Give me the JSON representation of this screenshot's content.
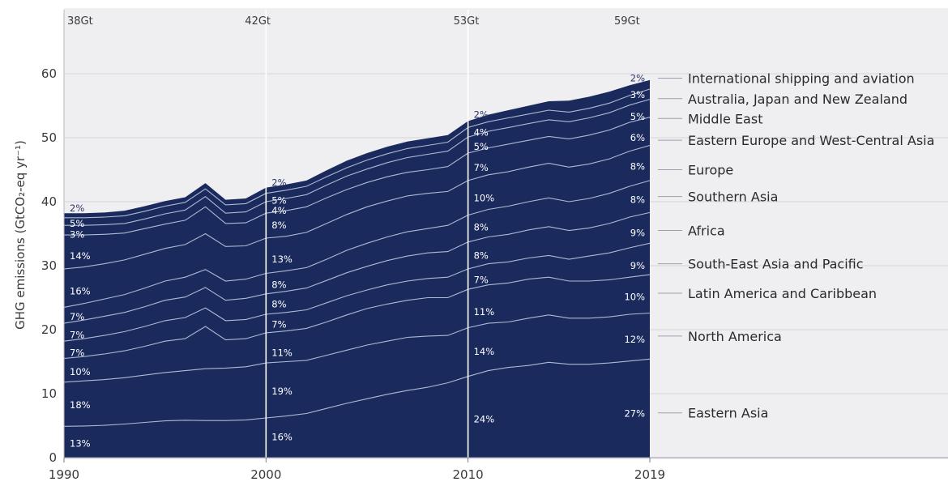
{
  "chart_data": {
    "type": "area",
    "ylabel": "GHG emissions (GtCO₂-eq yr⁻¹)",
    "ylim": [
      0,
      62
    ],
    "yticks": [
      0,
      10,
      20,
      30,
      40,
      50,
      60
    ],
    "xlim": [
      1990,
      2019
    ],
    "xticks": [
      "1990",
      "2000",
      "2010",
      "2019"
    ],
    "grid": "horizontal",
    "area_color": "#1b2a5c",
    "line_color": "#c8d2e8",
    "totals": [
      {
        "year": 1990,
        "label": "38Gt"
      },
      {
        "year": 2000,
        "label": "42Gt"
      },
      {
        "year": 2010,
        "label": "53Gt"
      },
      {
        "year": 2019,
        "label": "59Gt"
      }
    ],
    "years": [
      1990,
      1991,
      1992,
      1993,
      1994,
      1995,
      1996,
      1997,
      1998,
      1999,
      2000,
      2001,
      2002,
      2003,
      2004,
      2005,
      2006,
      2007,
      2008,
      2009,
      2010,
      2011,
      2012,
      2013,
      2014,
      2015,
      2016,
      2017,
      2018,
      2019
    ],
    "series": [
      {
        "name": "Eastern Asia",
        "values": [
          4.9,
          4.95,
          5.05,
          5.25,
          5.5,
          5.75,
          5.85,
          5.8,
          5.8,
          5.9,
          6.2,
          6.5,
          6.9,
          7.7,
          8.5,
          9.2,
          9.9,
          10.5,
          11.0,
          11.7,
          12.7,
          13.6,
          14.1,
          14.4,
          14.9,
          14.6,
          14.6,
          14.8,
          15.1,
          15.4
        ]
      },
      {
        "name": "North America",
        "values": [
          11.8,
          12.0,
          12.2,
          12.5,
          12.9,
          13.3,
          13.6,
          13.9,
          14.0,
          14.2,
          14.8,
          15.0,
          15.2,
          16.0,
          16.8,
          17.6,
          18.2,
          18.8,
          19.0,
          19.1,
          20.3,
          21.0,
          21.2,
          21.8,
          22.3,
          21.8,
          21.8,
          22.0,
          22.4,
          22.6
        ]
      },
      {
        "name": "Latin America and Caribbean",
        "values": [
          15.5,
          15.8,
          16.2,
          16.7,
          17.4,
          18.2,
          18.6,
          20.5,
          18.4,
          18.6,
          19.5,
          19.8,
          20.2,
          21.2,
          22.3,
          23.3,
          24.0,
          24.6,
          25.0,
          25.0,
          26.3,
          27.0,
          27.3,
          27.9,
          28.2,
          27.6,
          27.6,
          27.8,
          28.2,
          28.6
        ]
      },
      {
        "name": "South-East Asia and Pacific",
        "values": [
          18.2,
          18.6,
          19.1,
          19.7,
          20.5,
          21.4,
          21.9,
          23.4,
          21.4,
          21.6,
          22.4,
          22.7,
          23.1,
          24.2,
          25.3,
          26.2,
          27.0,
          27.6,
          28.0,
          28.2,
          29.5,
          30.3,
          30.6,
          31.2,
          31.6,
          31.0,
          31.5,
          32.0,
          32.8,
          33.5
        ]
      },
      {
        "name": "Africa",
        "values": [
          21.0,
          21.5,
          22.1,
          22.7,
          23.6,
          24.6,
          25.1,
          26.6,
          24.6,
          24.9,
          25.6,
          26.0,
          26.5,
          27.7,
          28.9,
          29.9,
          30.8,
          31.5,
          32.0,
          32.2,
          33.7,
          34.5,
          34.9,
          35.6,
          36.1,
          35.5,
          35.9,
          36.6,
          37.6,
          38.3
        ]
      },
      {
        "name": "Southern Asia",
        "values": [
          23.5,
          24.1,
          24.8,
          25.5,
          26.5,
          27.6,
          28.2,
          29.4,
          27.6,
          27.9,
          28.8,
          29.2,
          29.7,
          31.0,
          32.4,
          33.5,
          34.5,
          35.3,
          35.8,
          36.3,
          37.9,
          38.8,
          39.3,
          40.0,
          40.6,
          40.0,
          40.5,
          41.3,
          42.4,
          43.3
        ]
      },
      {
        "name": "Europe",
        "values": [
          29.5,
          29.8,
          30.3,
          30.9,
          31.8,
          32.7,
          33.3,
          35.0,
          33.0,
          33.1,
          34.3,
          34.6,
          35.2,
          36.6,
          38.0,
          39.2,
          40.1,
          40.9,
          41.3,
          41.6,
          43.3,
          44.2,
          44.7,
          45.4,
          46.0,
          45.4,
          45.9,
          46.7,
          47.9,
          48.8
        ]
      },
      {
        "name": "Eastern Europe and West-Central Asia",
        "values": [
          34.8,
          34.8,
          34.9,
          35.1,
          35.8,
          36.5,
          37.1,
          39.2,
          36.6,
          36.7,
          38.2,
          38.6,
          39.2,
          40.6,
          41.9,
          43.0,
          43.9,
          44.6,
          45.0,
          45.5,
          47.6,
          48.4,
          49.0,
          49.6,
          50.2,
          49.8,
          50.4,
          51.2,
          52.4,
          53.2
        ]
      },
      {
        "name": "Middle East",
        "values": [
          36.3,
          36.3,
          36.4,
          36.6,
          37.3,
          38.1,
          38.7,
          40.8,
          38.2,
          38.4,
          40.0,
          40.5,
          41.1,
          42.6,
          44.0,
          45.1,
          46.1,
          46.9,
          47.4,
          47.9,
          50.1,
          51.0,
          51.6,
          52.2,
          52.8,
          52.5,
          53.1,
          53.9,
          55.1,
          56.0
        ]
      },
      {
        "name": "Australia, Japan and New Zealand",
        "values": [
          37.5,
          37.5,
          37.6,
          37.8,
          38.5,
          39.3,
          39.9,
          42.0,
          39.5,
          39.7,
          41.3,
          41.8,
          42.4,
          43.9,
          45.3,
          46.5,
          47.5,
          48.3,
          48.8,
          49.3,
          51.6,
          52.5,
          53.1,
          53.7,
          54.3,
          54.0,
          54.6,
          55.4,
          56.6,
          57.6
        ]
      },
      {
        "name": "International shipping and aviation",
        "values": [
          38.2,
          38.2,
          38.3,
          38.6,
          39.3,
          40.1,
          40.7,
          42.9,
          40.3,
          40.5,
          42.2,
          42.7,
          43.3,
          44.9,
          46.4,
          47.6,
          48.6,
          49.4,
          49.9,
          50.4,
          52.6,
          53.6,
          54.3,
          55.0,
          55.7,
          55.8,
          56.4,
          57.2,
          58.2,
          59.0
        ]
      }
    ],
    "region_labels": [
      "International shipping and aviation",
      "Australia, Japan and New Zealand",
      "Middle East",
      "Eastern Europe and West-Central Asia",
      "Europe",
      "Southern Asia",
      "Africa",
      "South-East Asia and Pacific",
      "Latin America and Caribbean",
      "North America",
      "Eastern Asia"
    ],
    "region_label_values": [
      59.3,
      56.1,
      53.0,
      49.6,
      45.0,
      40.8,
      35.5,
      30.3,
      25.7,
      19.0,
      7.0
    ],
    "share_labels": [
      {
        "year": 1990,
        "items": [
          {
            "text": "2%",
            "y": 39.0,
            "top": true
          },
          {
            "text": "5%",
            "y": 36.6
          },
          {
            "text": "3%",
            "y": 34.9
          },
          {
            "text": "14%",
            "y": 31.5
          },
          {
            "text": "16%",
            "y": 26.0
          },
          {
            "text": "7%",
            "y": 22.0
          },
          {
            "text": "7%",
            "y": 19.2
          },
          {
            "text": "7%",
            "y": 16.4
          },
          {
            "text": "10%",
            "y": 13.4
          },
          {
            "text": "18%",
            "y": 8.2
          },
          {
            "text": "13%",
            "y": 2.2
          }
        ]
      },
      {
        "year": 2000,
        "items": [
          {
            "text": "2%",
            "y": 43.0,
            "top": true
          },
          {
            "text": "5%",
            "y": 40.2
          },
          {
            "text": "4%",
            "y": 38.6
          },
          {
            "text": "8%",
            "y": 36.3
          },
          {
            "text": "13%",
            "y": 31.0
          },
          {
            "text": "8%",
            "y": 27.0
          },
          {
            "text": "8%",
            "y": 24.0
          },
          {
            "text": "7%",
            "y": 20.8
          },
          {
            "text": "11%",
            "y": 16.4
          },
          {
            "text": "19%",
            "y": 10.4
          },
          {
            "text": "16%",
            "y": 3.2
          }
        ]
      },
      {
        "year": 2010,
        "items": [
          {
            "text": "2%",
            "y": 53.6,
            "top": true
          },
          {
            "text": "4%",
            "y": 50.8
          },
          {
            "text": "5%",
            "y": 48.6
          },
          {
            "text": "7%",
            "y": 45.3
          },
          {
            "text": "10%",
            "y": 40.6
          },
          {
            "text": "8%",
            "y": 36.0
          },
          {
            "text": "8%",
            "y": 31.6
          },
          {
            "text": "7%",
            "y": 27.8
          },
          {
            "text": "11%",
            "y": 22.8
          },
          {
            "text": "14%",
            "y": 16.6
          },
          {
            "text": "24%",
            "y": 6.0
          }
        ]
      },
      {
        "year": 2019,
        "items": [
          {
            "text": "2%",
            "y": 59.3,
            "top": true
          },
          {
            "text": "3%",
            "y": 56.7
          },
          {
            "text": "5%",
            "y": 53.3
          },
          {
            "text": "6%",
            "y": 50.0
          },
          {
            "text": "8%",
            "y": 45.5
          },
          {
            "text": "8%",
            "y": 40.3
          },
          {
            "text": "9%",
            "y": 35.1
          },
          {
            "text": "9%",
            "y": 30.0
          },
          {
            "text": "10%",
            "y": 25.1
          },
          {
            "text": "12%",
            "y": 18.5
          },
          {
            "text": "27%",
            "y": 6.9
          }
        ]
      }
    ]
  }
}
